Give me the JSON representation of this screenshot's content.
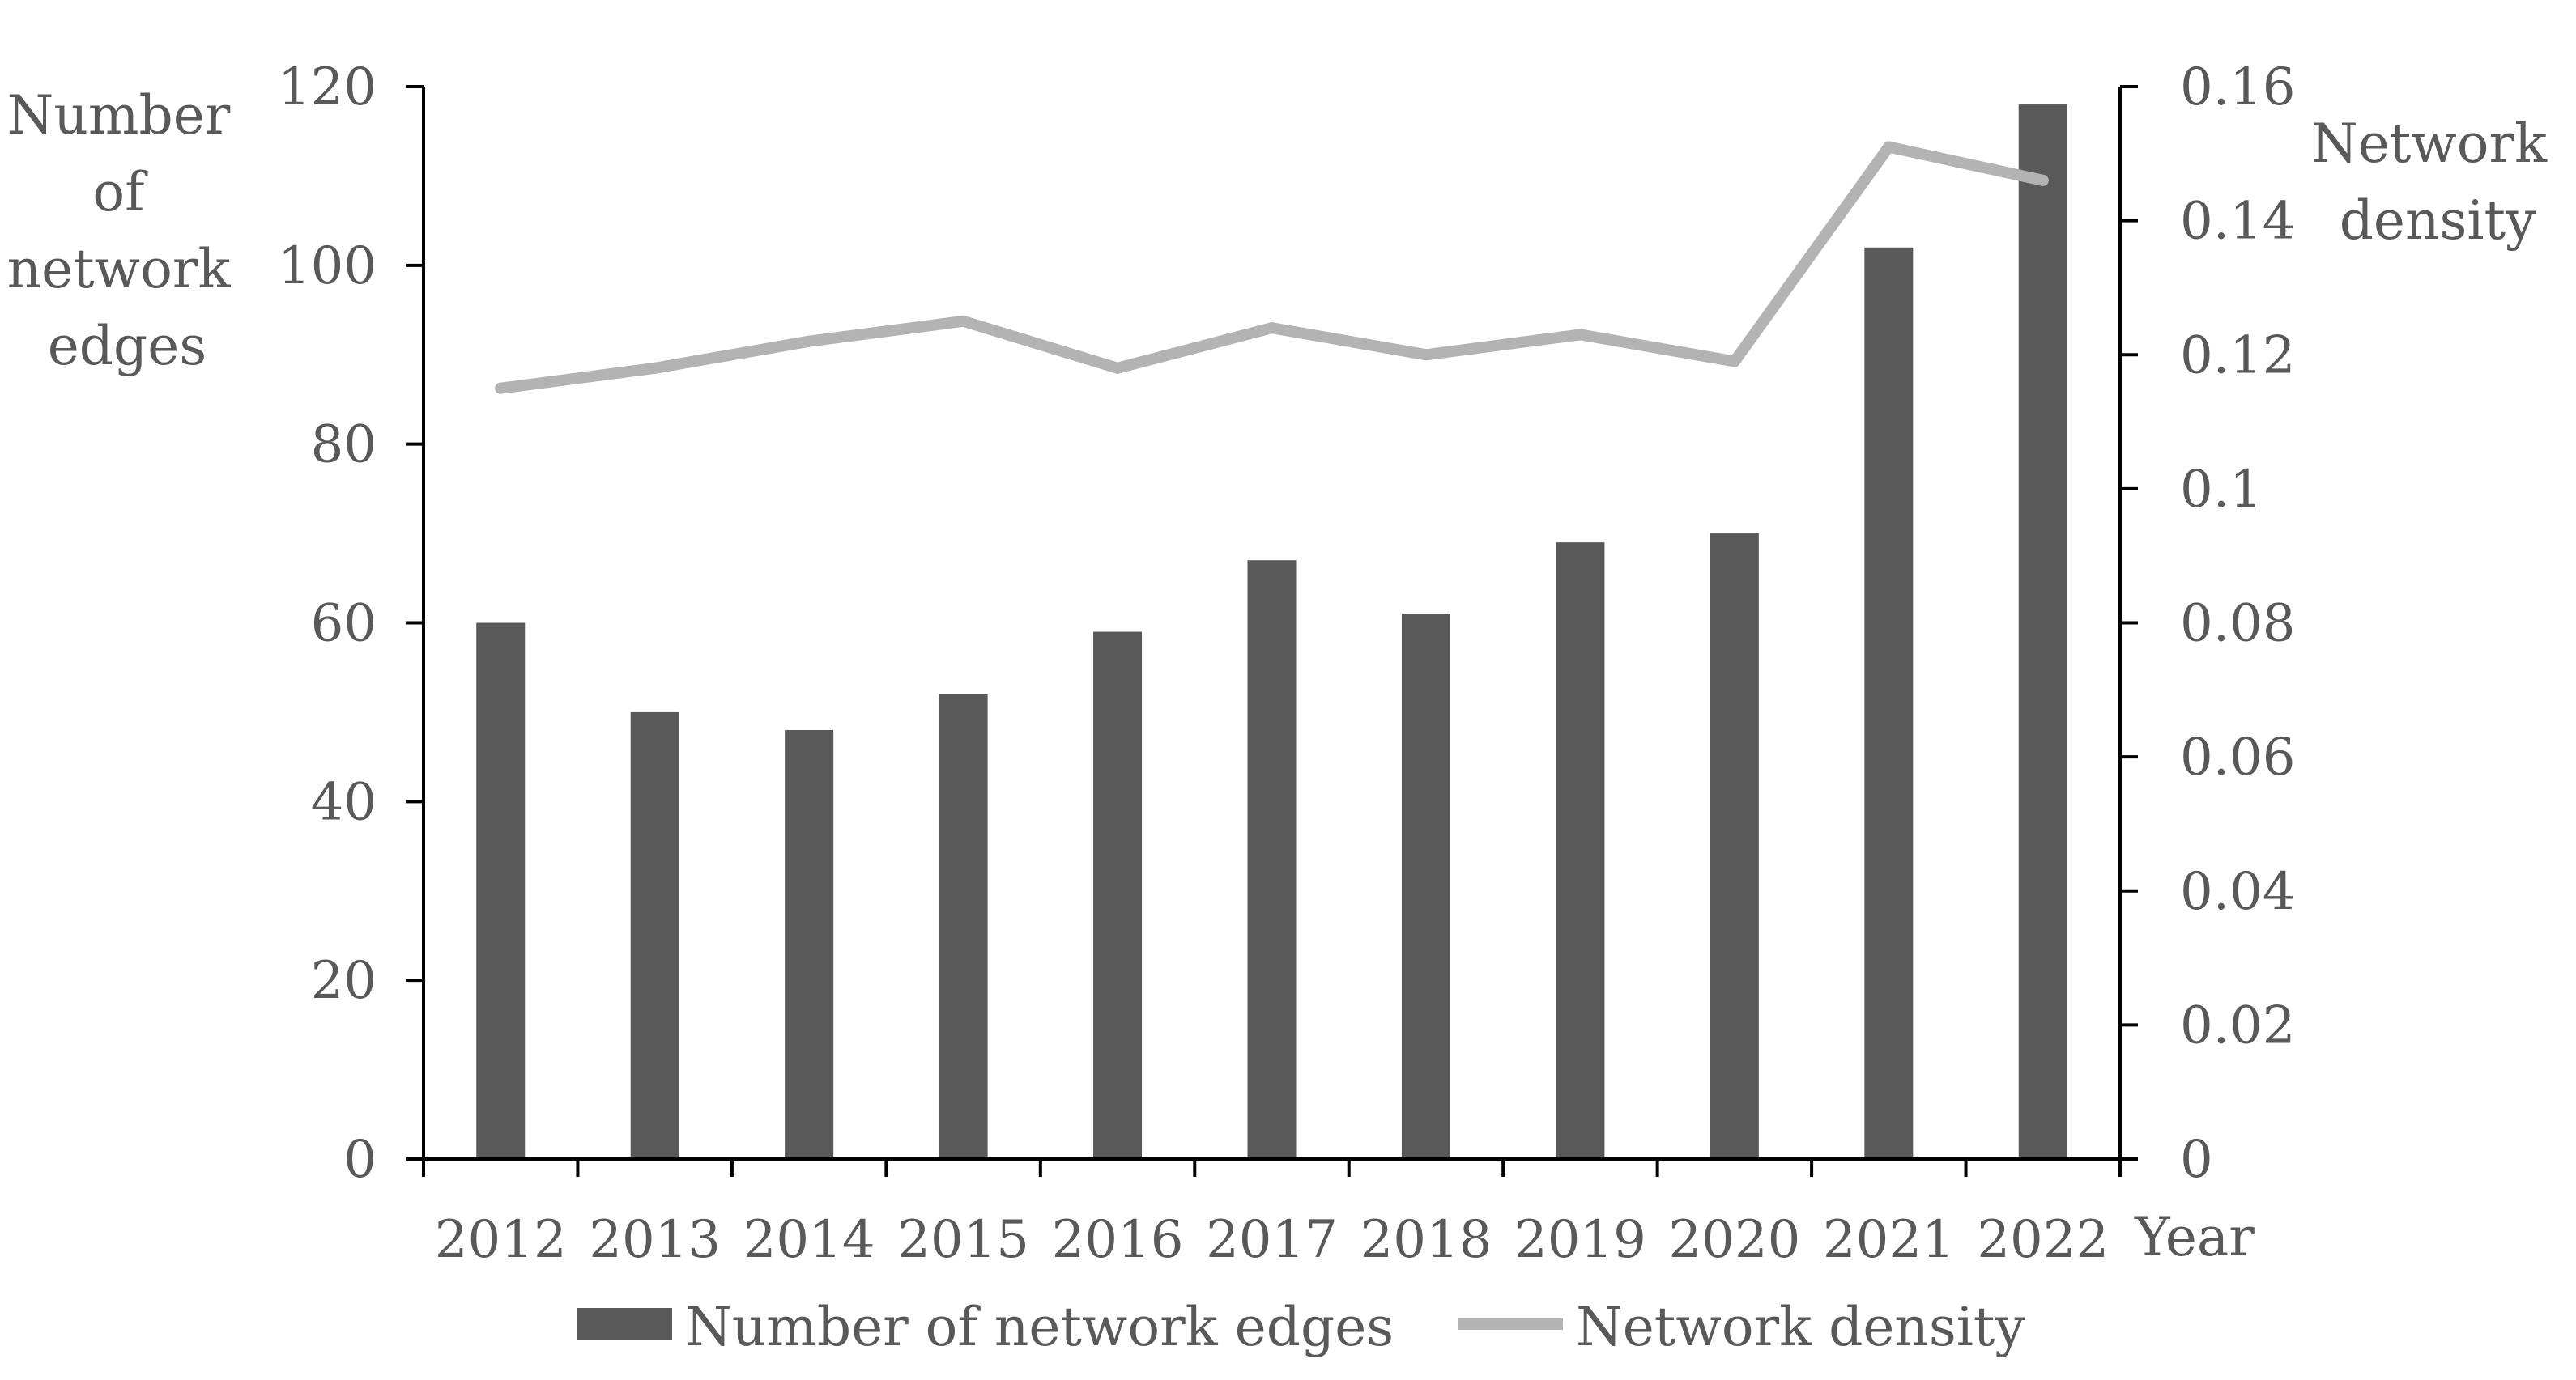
{
  "chart_data": {
    "type": "bar",
    "categories": [
      "2012",
      "2013",
      "2014",
      "2015",
      "2016",
      "2017",
      "2018",
      "2019",
      "2020",
      "2021",
      "2022"
    ],
    "series": [
      {
        "name": "Number of network edges",
        "kind": "bar",
        "axis": "left",
        "color": "#595959",
        "values": [
          60,
          50,
          48,
          52,
          59,
          67,
          61,
          69,
          70,
          102,
          118
        ]
      },
      {
        "name": "Network density",
        "kind": "line",
        "axis": "right",
        "color": "#b3b3b3",
        "values": [
          0.115,
          0.118,
          0.122,
          0.125,
          0.118,
          0.124,
          0.12,
          0.123,
          0.119,
          0.151,
          0.146
        ]
      }
    ],
    "ylabel_left": [
      "Number",
      "of",
      "network",
      "edges"
    ],
    "ylabel_right": [
      "Network",
      "density"
    ],
    "xlabel": "Year",
    "ylim_left": [
      0,
      120
    ],
    "ylim_right": [
      0,
      0.16
    ],
    "yticks_left": [
      "0",
      "20",
      "40",
      "60",
      "80",
      "100",
      "120"
    ],
    "yticks_right": [
      "0",
      "0.02",
      "0.04",
      "0.06",
      "0.08",
      "0.1",
      "0.12",
      "0.14",
      "0.16"
    ],
    "legend_position": "bottom",
    "grid": false,
    "axis_color": "#000000"
  }
}
